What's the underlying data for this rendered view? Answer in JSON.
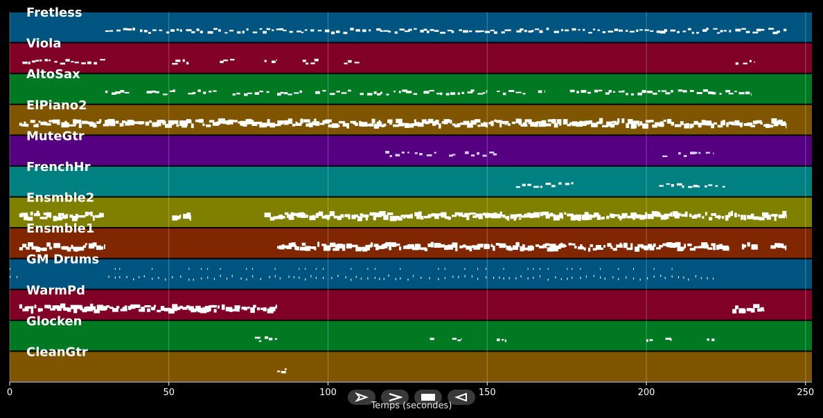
{
  "chart_data": {
    "type": "piano-roll",
    "xlabel": "Temps (secondes)",
    "xlim": [
      0,
      252
    ],
    "xticks": [
      0,
      50,
      100,
      150,
      200,
      250
    ],
    "grid": true,
    "tracks": [
      {
        "name": "Fretless",
        "color": "#005580",
        "dense": false,
        "segments": [
          [
            30,
            244
          ]
        ]
      },
      {
        "name": "Viola",
        "color": "#800026",
        "dense": false,
        "segments": [
          [
            4,
            30
          ],
          [
            51,
            57
          ],
          [
            66,
            71
          ],
          [
            80,
            84
          ],
          [
            92,
            97
          ],
          [
            105,
            110
          ],
          [
            228,
            234
          ]
        ]
      },
      {
        "name": "AltoSax",
        "color": "#007a22",
        "dense": false,
        "segments": [
          [
            30,
            38
          ],
          [
            43,
            52
          ],
          [
            56,
            65
          ],
          [
            70,
            82
          ],
          [
            84,
            92
          ],
          [
            96,
            108
          ],
          [
            110,
            128
          ],
          [
            130,
            150
          ],
          [
            153,
            162
          ],
          [
            166,
            168
          ],
          [
            176,
            233
          ]
        ]
      },
      {
        "name": "ElPiano2",
        "color": "#7f5500",
        "dense": true,
        "segments": [
          [
            3,
            244
          ]
        ]
      },
      {
        "name": "MuteGtr",
        "color": "#550080",
        "dense": false,
        "light": true,
        "segments": [
          [
            118,
            134
          ],
          [
            138,
            140
          ],
          [
            143,
            153
          ],
          [
            205,
            207
          ],
          [
            210,
            221
          ]
        ]
      },
      {
        "name": "FrenchHr",
        "color": "#008080",
        "dense": false,
        "segments": [
          [
            159,
            178
          ],
          [
            204,
            226
          ]
        ]
      },
      {
        "name": "Ensmble2",
        "color": "#808000",
        "dense": true,
        "segments": [
          [
            3,
            30
          ],
          [
            51,
            57
          ],
          [
            80,
            111
          ],
          [
            111,
            244
          ]
        ]
      },
      {
        "name": "Ensmble1",
        "color": "#802600",
        "dense": true,
        "segments": [
          [
            3,
            30
          ],
          [
            84,
            226
          ],
          [
            230,
            235
          ],
          [
            239,
            244
          ]
        ]
      },
      {
        "name": "GM Drums",
        "color": "#005580",
        "dense": false,
        "drums": true,
        "segments": [
          [
            0,
            3
          ],
          [
            31,
            221
          ]
        ]
      },
      {
        "name": "WarmPd",
        "color": "#800026",
        "dense": true,
        "segments": [
          [
            3,
            84
          ],
          [
            227,
            237
          ]
        ]
      },
      {
        "name": "Glocken",
        "color": "#007a22",
        "dense": false,
        "segments": [
          [
            77,
            84
          ],
          [
            132,
            134
          ],
          [
            139,
            142
          ],
          [
            153,
            156
          ],
          [
            200,
            202
          ],
          [
            206,
            208
          ],
          [
            219,
            222
          ]
        ]
      },
      {
        "name": "CleanGtr",
        "color": "#7f5500",
        "dense": false,
        "segments": [
          [
            84,
            87
          ]
        ]
      }
    ]
  },
  "controls": {
    "play_icon": "play-outline-icon",
    "next_icon": "chevron-right-icon",
    "stop_icon": "stop-square-icon",
    "back_icon": "play-reverse-outline-icon"
  }
}
